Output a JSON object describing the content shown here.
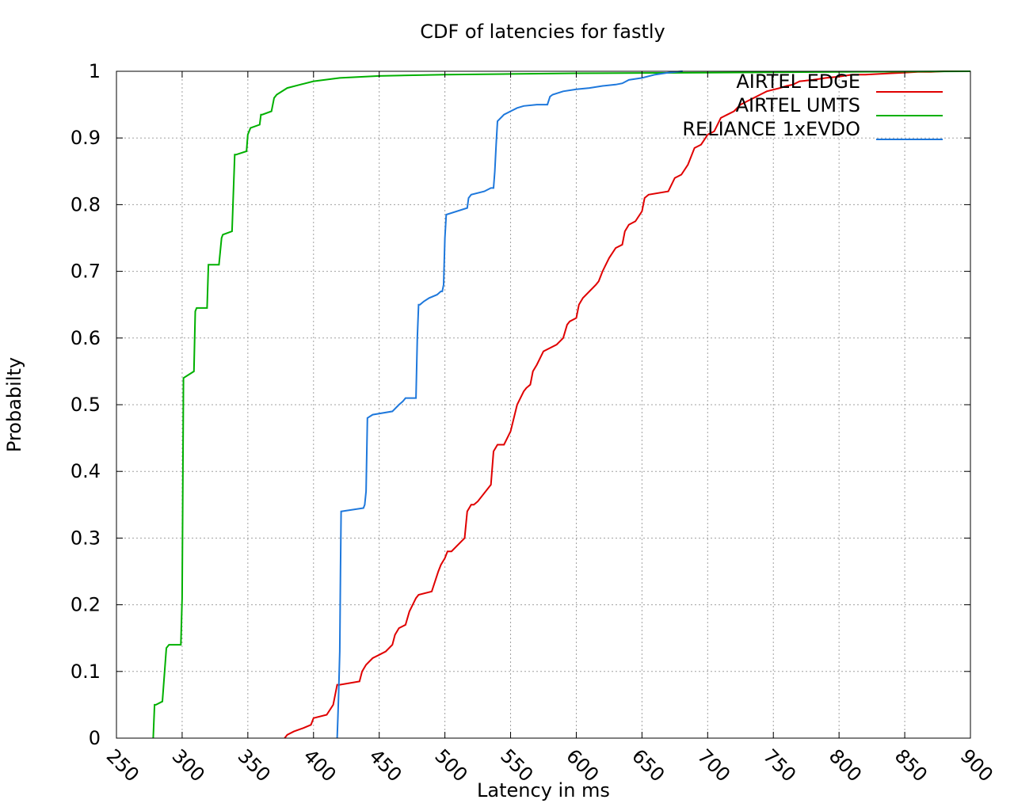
{
  "chart_data": {
    "type": "line",
    "title": "CDF of latencies for fastly",
    "xlabel": "Latency in ms",
    "ylabel": "Probabilty",
    "xlim": [
      250,
      900
    ],
    "ylim": [
      0,
      1
    ],
    "xticks": [
      "250",
      "300",
      "350",
      "400",
      "450",
      "500",
      "550",
      "600",
      "650",
      "700",
      "750",
      "800",
      "850",
      "900"
    ],
    "yticks": [
      "0",
      "0.1",
      "0.2",
      "0.3",
      "0.4",
      "0.5",
      "0.6",
      "0.7",
      "0.8",
      "0.9",
      "1"
    ],
    "grid": true,
    "legend_position": "top-right",
    "series": [
      {
        "name": "AIRTEL EDGE",
        "color": "#e00000",
        "x": [
          378,
          380,
          385,
          392,
          398,
          400,
          410,
          415,
          418,
          420,
          435,
          437,
          440,
          445,
          450,
          455,
          460,
          462,
          465,
          470,
          473,
          478,
          480,
          490,
          495,
          497,
          500,
          502,
          505,
          515,
          517,
          520,
          522,
          525,
          535,
          537,
          540,
          545,
          550,
          555,
          560,
          562,
          565,
          567,
          570,
          575,
          580,
          585,
          590,
          593,
          595,
          600,
          602,
          605,
          615,
          617,
          620,
          625,
          630,
          635,
          637,
          640,
          645,
          650,
          652,
          655,
          670,
          675,
          680,
          685,
          690,
          695,
          700,
          705,
          710,
          715,
          720,
          725,
          730,
          735,
          740,
          745,
          755,
          760,
          765,
          770,
          780,
          790,
          800,
          810,
          820,
          830,
          840,
          850,
          860,
          870,
          880,
          900
        ],
        "y": [
          0,
          0.005,
          0.01,
          0.015,
          0.02,
          0.03,
          0.035,
          0.05,
          0.08,
          0.08,
          0.085,
          0.1,
          0.11,
          0.12,
          0.125,
          0.13,
          0.14,
          0.155,
          0.165,
          0.17,
          0.19,
          0.21,
          0.215,
          0.22,
          0.25,
          0.26,
          0.27,
          0.28,
          0.28,
          0.3,
          0.34,
          0.35,
          0.35,
          0.355,
          0.38,
          0.43,
          0.44,
          0.44,
          0.46,
          0.5,
          0.52,
          0.525,
          0.53,
          0.55,
          0.56,
          0.58,
          0.585,
          0.59,
          0.6,
          0.62,
          0.625,
          0.63,
          0.65,
          0.66,
          0.68,
          0.685,
          0.7,
          0.72,
          0.735,
          0.74,
          0.76,
          0.77,
          0.775,
          0.79,
          0.81,
          0.815,
          0.82,
          0.84,
          0.845,
          0.86,
          0.885,
          0.89,
          0.905,
          0.91,
          0.93,
          0.935,
          0.94,
          0.95,
          0.955,
          0.96,
          0.965,
          0.97,
          0.975,
          0.978,
          0.98,
          0.985,
          0.987,
          0.99,
          0.992,
          0.995,
          0.995,
          0.996,
          0.997,
          0.998,
          0.999,
          0.999,
          1.0,
          1.0
        ]
      },
      {
        "name": "AIRTEL UMTS",
        "color": "#00b000",
        "x": [
          278,
          279,
          280,
          285,
          288,
          290,
          299,
          300,
          301,
          309,
          310,
          311,
          319,
          320,
          321,
          328,
          330,
          331,
          338,
          340,
          341,
          349,
          350,
          352,
          359,
          360,
          361,
          368,
          370,
          372,
          380,
          390,
          400,
          420,
          450,
          500,
          550,
          600,
          700,
          800,
          900
        ],
        "y": [
          0,
          0.05,
          0.05,
          0.055,
          0.135,
          0.14,
          0.14,
          0.21,
          0.54,
          0.55,
          0.64,
          0.645,
          0.645,
          0.71,
          0.71,
          0.71,
          0.75,
          0.755,
          0.76,
          0.875,
          0.875,
          0.88,
          0.905,
          0.915,
          0.92,
          0.935,
          0.935,
          0.94,
          0.96,
          0.965,
          0.975,
          0.98,
          0.985,
          0.99,
          0.993,
          0.995,
          0.996,
          0.997,
          0.998,
          0.999,
          1.0
        ]
      },
      {
        "name": "RELIANCE 1xEVDO",
        "color": "#1e78dc",
        "x": [
          418,
          418.5,
          419,
          420,
          420.5,
          421,
          438,
          439,
          440,
          441,
          445,
          460,
          465,
          468,
          470,
          478,
          479,
          480,
          481,
          484,
          488,
          494,
          497,
          498,
          499,
          500,
          501,
          517,
          518,
          520,
          530,
          535,
          537,
          538,
          539,
          540,
          545,
          550,
          555,
          560,
          570,
          578,
          580,
          582,
          590,
          600,
          610,
          620,
          630,
          635,
          638,
          640,
          650,
          660,
          670,
          680,
          681
        ],
        "y": [
          0,
          0.03,
          0.06,
          0.13,
          0.25,
          0.34,
          0.345,
          0.35,
          0.37,
          0.48,
          0.485,
          0.49,
          0.5,
          0.505,
          0.51,
          0.51,
          0.6,
          0.65,
          0.65,
          0.655,
          0.66,
          0.665,
          0.67,
          0.67,
          0.68,
          0.75,
          0.785,
          0.795,
          0.81,
          0.815,
          0.82,
          0.825,
          0.825,
          0.85,
          0.89,
          0.925,
          0.935,
          0.94,
          0.945,
          0.948,
          0.95,
          0.95,
          0.962,
          0.965,
          0.97,
          0.973,
          0.975,
          0.978,
          0.98,
          0.982,
          0.985,
          0.987,
          0.99,
          0.995,
          0.998,
          1.0,
          1.0
        ]
      }
    ]
  }
}
